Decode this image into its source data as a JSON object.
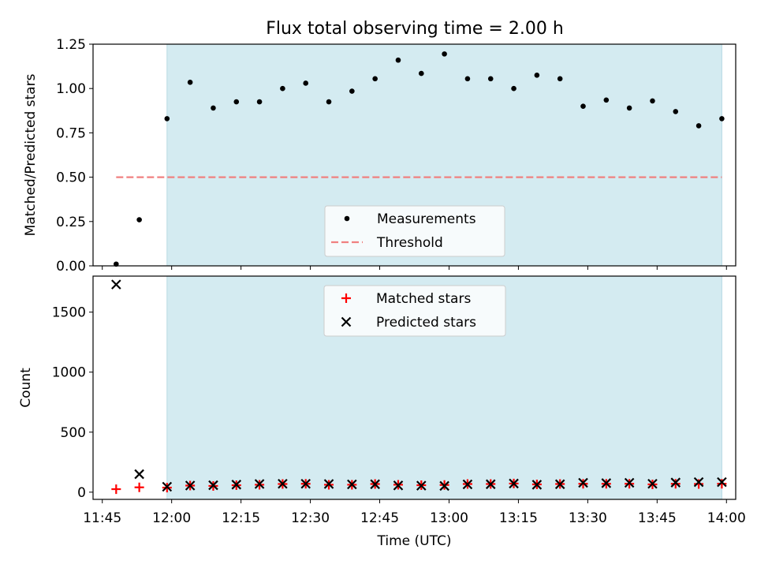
{
  "title": "Flux total observing time = 2.00 h",
  "colors": {
    "observing_window": "#d4ebf1",
    "threshold": "#f08080",
    "measurement": "#000000",
    "matched": "#ff0000",
    "predicted": "#000000"
  },
  "chart_data": [
    {
      "type": "scatter",
      "title": "Flux total observing time = 2.00 h",
      "xlabel": "",
      "ylabel": "Matched/Predicted stars",
      "xlim": [
        "11:43",
        "14:02"
      ],
      "ylim": [
        0,
        1.25
      ],
      "yticks": [
        "0.00",
        "0.25",
        "0.50",
        "0.75",
        "1.00",
        "1.25"
      ],
      "shaded_span": [
        "11:59",
        "13:59"
      ],
      "legend": {
        "placement": "lower-center",
        "entries": [
          "Measurements",
          "Threshold"
        ]
      },
      "threshold": {
        "name": "Threshold",
        "value": 0.5,
        "from": "11:48",
        "to": "13:59"
      },
      "series": [
        {
          "name": "Measurements",
          "x": [
            "11:48",
            "11:53",
            "11:59",
            "12:04",
            "12:09",
            "12:14",
            "12:19",
            "12:24",
            "12:29",
            "12:34",
            "12:39",
            "12:44",
            "12:49",
            "12:54",
            "12:59",
            "13:04",
            "13:09",
            "13:14",
            "13:19",
            "13:24",
            "13:29",
            "13:34",
            "13:39",
            "13:44",
            "13:49",
            "13:54",
            "13:59"
          ],
          "y": [
            0.01,
            0.26,
            0.83,
            1.035,
            0.89,
            0.925,
            0.925,
            1.0,
            1.03,
            0.925,
            0.985,
            1.055,
            1.16,
            1.085,
            1.195,
            1.055,
            1.055,
            1.0,
            1.075,
            1.055,
            0.9,
            0.935,
            0.89,
            0.93,
            0.87,
            0.79,
            0.83
          ]
        }
      ]
    },
    {
      "type": "scatter",
      "xlabel": "Time (UTC)",
      "ylabel": "Count",
      "xlim": [
        "11:43",
        "14:02"
      ],
      "ylim": [
        -60,
        1800
      ],
      "xticks": [
        "11:45",
        "12:00",
        "12:15",
        "12:30",
        "12:45",
        "13:00",
        "13:15",
        "13:30",
        "13:45",
        "14:00"
      ],
      "yticks": [
        "0",
        "500",
        "1000",
        "1500"
      ],
      "shaded_span": [
        "11:59",
        "13:59"
      ],
      "legend": {
        "placement": "upper-center",
        "entries": [
          "Matched stars",
          "Predicted stars"
        ]
      },
      "series": [
        {
          "name": "Matched stars",
          "x": [
            "11:48",
            "11:53",
            "11:59",
            "12:04",
            "12:09",
            "12:14",
            "12:19",
            "12:24",
            "12:29",
            "12:34",
            "12:39",
            "12:44",
            "12:49",
            "12:54",
            "12:59",
            "13:04",
            "13:09",
            "13:14",
            "13:19",
            "13:24",
            "13:29",
            "13:34",
            "13:39",
            "13:44",
            "13:49",
            "13:54",
            "13:59"
          ],
          "y": [
            25,
            40,
            38,
            55,
            52,
            58,
            62,
            68,
            70,
            62,
            62,
            68,
            62,
            58,
            60,
            68,
            68,
            72,
            65,
            68,
            70,
            70,
            70,
            65,
            70,
            68,
            70
          ]
        },
        {
          "name": "Predicted stars",
          "x": [
            "11:48",
            "11:53",
            "11:59",
            "12:04",
            "12:09",
            "12:14",
            "12:19",
            "12:24",
            "12:29",
            "12:34",
            "12:39",
            "12:44",
            "12:49",
            "12:54",
            "12:59",
            "13:04",
            "13:09",
            "13:14",
            "13:19",
            "13:24",
            "13:29",
            "13:34",
            "13:39",
            "13:44",
            "13:49",
            "13:54",
            "13:59"
          ],
          "y": [
            1730,
            150,
            45,
            55,
            58,
            63,
            68,
            70,
            70,
            68,
            65,
            66,
            56,
            54,
            52,
            65,
            66,
            72,
            62,
            66,
            78,
            75,
            78,
            70,
            80,
            84,
            84
          ]
        }
      ]
    }
  ]
}
